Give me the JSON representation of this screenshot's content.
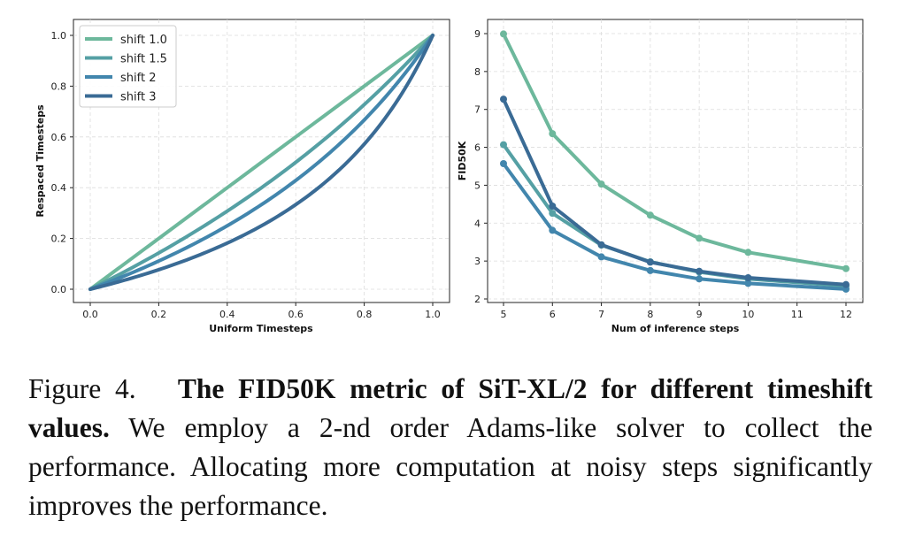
{
  "chart_data": [
    {
      "type": "line",
      "xlabel": "Uniform Timesteps",
      "ylabel": "Respaced Timesteps",
      "xlim": [
        0,
        1.0
      ],
      "ylim": [
        0,
        1.0
      ],
      "xticks": [
        "0.0",
        "0.2",
        "0.4",
        "0.6",
        "0.8",
        "1.0"
      ],
      "yticks": [
        "0.0",
        "0.2",
        "0.4",
        "0.6",
        "0.8",
        "1.0"
      ],
      "grid": true,
      "legend_position": "top-left",
      "series": [
        {
          "name": "shift 1.0",
          "shift": 1.0,
          "color": "#6db89c"
        },
        {
          "name": "shift 1.5",
          "shift": 1.5,
          "color": "#55a0a4"
        },
        {
          "name": "shift 2",
          "shift": 2,
          "color": "#4286ad"
        },
        {
          "name": "shift 3",
          "shift": 3,
          "color": "#3a6b95"
        }
      ]
    },
    {
      "type": "line",
      "xlabel": "Num of inference steps",
      "ylabel": "FID50K",
      "x": [
        5,
        6,
        7,
        8,
        9,
        10,
        12
      ],
      "xticks": [
        "5",
        "6",
        "7",
        "8",
        "9",
        "10",
        "11",
        "12"
      ],
      "yticks": [
        "2",
        "3",
        "4",
        "5",
        "6",
        "7",
        "8",
        "9"
      ],
      "xlim": [
        5,
        12
      ],
      "ylim": [
        2,
        9
      ],
      "grid": true,
      "series": [
        {
          "name": "shift 1.0",
          "color": "#6db89c",
          "values": [
            8.99,
            6.36,
            5.03,
            4.21,
            3.6,
            3.23,
            2.8
          ]
        },
        {
          "name": "shift 1.5",
          "color": "#55a0a4",
          "values": [
            6.07,
            4.26,
            3.42,
            2.98,
            2.71,
            2.53,
            2.34
          ]
        },
        {
          "name": "shift 2",
          "color": "#4286ad",
          "values": [
            5.57,
            3.81,
            3.11,
            2.75,
            2.53,
            2.41,
            2.26
          ]
        },
        {
          "name": "shift 3",
          "color": "#3a6b95",
          "values": [
            7.27,
            4.45,
            3.43,
            2.97,
            2.73,
            2.56,
            2.38
          ]
        }
      ]
    }
  ],
  "caption": {
    "label": "Figure 4.",
    "bold": "The FID50K metric of SiT-XL/2 for different timeshift values.",
    "text": "We employ a 2-nd order Adams-like solver to collect the performance. Allocating more computation at noisy steps significantly improves the performance."
  }
}
